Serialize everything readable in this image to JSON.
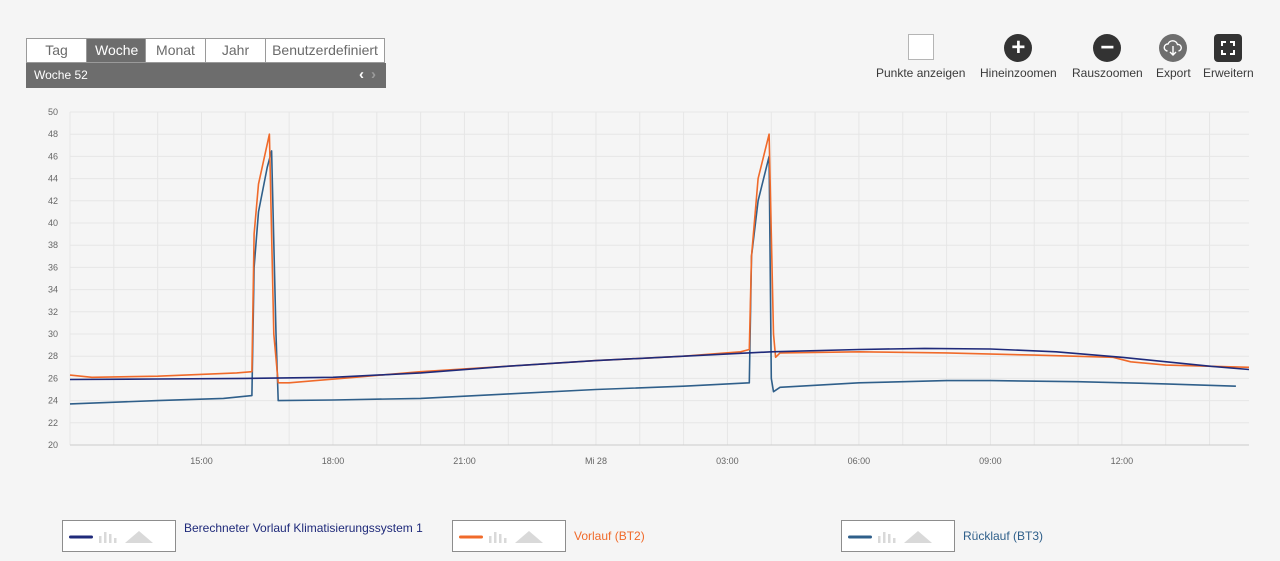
{
  "period_tabs": [
    {
      "label": "Tag",
      "active": false
    },
    {
      "label": "Woche",
      "active": true
    },
    {
      "label": "Monat",
      "active": false
    },
    {
      "label": "Jahr",
      "active": false
    },
    {
      "label": "Benutzerdefiniert",
      "active": false
    }
  ],
  "period_nav": {
    "label": "Woche  52",
    "prev_icon": "chevron-left",
    "next_icon": "chevron-right"
  },
  "toolbar": {
    "show_points_label": "Punkte anzeigen",
    "zoom_in_label": "Hineinzoomen",
    "zoom_out_label": "Rauszoomen",
    "export_label": "Export",
    "expand_label": "Erweitern"
  },
  "chart_data": {
    "type": "line",
    "ylim": [
      20,
      50
    ],
    "yticks": [
      20,
      22,
      24,
      26,
      28,
      30,
      32,
      34,
      36,
      38,
      40,
      42,
      44,
      46,
      48,
      50
    ],
    "xlim": [
      12.0,
      38.9
    ],
    "xticks": [
      {
        "value": 15,
        "label": "15:00"
      },
      {
        "value": 18,
        "label": "18:00"
      },
      {
        "value": 21,
        "label": "21:00"
      },
      {
        "value": 24,
        "label": "Mi 28"
      },
      {
        "value": 27,
        "label": "03:00"
      },
      {
        "value": 30,
        "label": "06:00"
      },
      {
        "value": 33,
        "label": "09:00"
      },
      {
        "value": 36,
        "label": "12:00"
      }
    ],
    "grid": true,
    "legend_position": "bottom",
    "series": [
      {
        "name": "Berechneter Vorlauf Klimatisierungssystem 1",
        "color": "#1f2a7a",
        "points": [
          [
            12.0,
            25.9
          ],
          [
            14.0,
            25.95
          ],
          [
            16.0,
            26.0
          ],
          [
            18.0,
            26.1
          ],
          [
            20.0,
            26.5
          ],
          [
            22.0,
            27.1
          ],
          [
            24.0,
            27.6
          ],
          [
            26.0,
            28.0
          ],
          [
            28.0,
            28.4
          ],
          [
            30.0,
            28.6
          ],
          [
            31.5,
            28.7
          ],
          [
            33.0,
            28.65
          ],
          [
            34.5,
            28.4
          ],
          [
            36.0,
            27.9
          ],
          [
            38.0,
            27.1
          ],
          [
            38.9,
            26.8
          ]
        ]
      },
      {
        "name": "Vorlauf (BT2)",
        "color": "#f06a2a",
        "points": [
          [
            12.0,
            26.3
          ],
          [
            12.5,
            26.1
          ],
          [
            14.0,
            26.2
          ],
          [
            15.8,
            26.5
          ],
          [
            16.15,
            26.6
          ],
          [
            16.2,
            39.0
          ],
          [
            16.3,
            43.5
          ],
          [
            16.55,
            48.0
          ],
          [
            16.65,
            30.0
          ],
          [
            16.75,
            25.6
          ],
          [
            17.0,
            25.6
          ],
          [
            18.5,
            26.1
          ],
          [
            20.0,
            26.6
          ],
          [
            22.0,
            27.1
          ],
          [
            24.0,
            27.6
          ],
          [
            26.0,
            28.0
          ],
          [
            27.3,
            28.4
          ],
          [
            27.5,
            28.6
          ],
          [
            27.55,
            37.0
          ],
          [
            27.7,
            44.0
          ],
          [
            27.95,
            48.0
          ],
          [
            28.05,
            30.0
          ],
          [
            28.1,
            27.9
          ],
          [
            28.2,
            28.3
          ],
          [
            30.0,
            28.4
          ],
          [
            32.0,
            28.3
          ],
          [
            34.0,
            28.1
          ],
          [
            35.8,
            27.9
          ],
          [
            36.2,
            27.5
          ],
          [
            37.0,
            27.2
          ],
          [
            38.9,
            27.0
          ]
        ]
      },
      {
        "name": "Rücklauf (BT3)",
        "color": "#2f5f8a",
        "points": [
          [
            12.0,
            23.7
          ],
          [
            14.0,
            24.0
          ],
          [
            15.5,
            24.2
          ],
          [
            16.15,
            24.45
          ],
          [
            16.2,
            36.0
          ],
          [
            16.3,
            41.0
          ],
          [
            16.5,
            45.0
          ],
          [
            16.6,
            46.5
          ],
          [
            16.7,
            30.0
          ],
          [
            16.75,
            24.0
          ],
          [
            18.0,
            24.05
          ],
          [
            20.0,
            24.2
          ],
          [
            22.0,
            24.6
          ],
          [
            24.0,
            25.0
          ],
          [
            26.0,
            25.3
          ],
          [
            27.5,
            25.6
          ],
          [
            27.55,
            37.0
          ],
          [
            27.7,
            42.0
          ],
          [
            27.95,
            46.0
          ],
          [
            28.0,
            26.0
          ],
          [
            28.05,
            24.8
          ],
          [
            28.2,
            25.2
          ],
          [
            30.0,
            25.6
          ],
          [
            32.0,
            25.8
          ],
          [
            33.0,
            25.8
          ],
          [
            35.0,
            25.7
          ],
          [
            37.0,
            25.5
          ],
          [
            38.6,
            25.3
          ]
        ]
      }
    ]
  }
}
